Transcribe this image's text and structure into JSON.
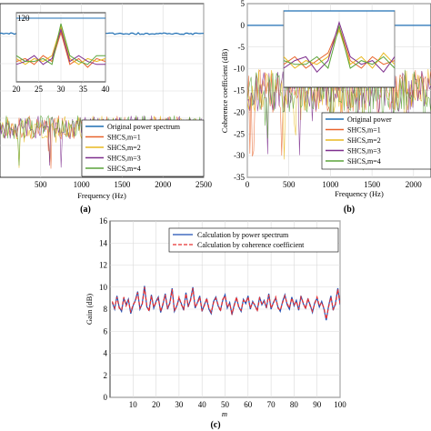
{
  "colors": {
    "original": "#1f6fb4",
    "m1": "#e8642c",
    "m2": "#e8b820",
    "m3": "#7e2f8e",
    "m4": "#5aa43a",
    "power_spectrum": "#1f4fb4",
    "coherence": "#e83030"
  },
  "panel_a": {
    "label": "(a)",
    "xlabel": "Frequency (Hz)",
    "legend": [
      "Original power spectrum",
      "SHCS,m=1",
      "SHCS,m=2",
      "SHCS,m=3",
      "SHCS,m=4"
    ]
  },
  "panel_b": {
    "label": "(b)",
    "xlabel": "Frequency (Hz)",
    "ylabel": "Coherence coefficient (dB)",
    "legend": [
      "Original power",
      "SHCS,m=1",
      "SHCS,m=2",
      "SHCS,m=3",
      "SHCS,m=4"
    ]
  },
  "panel_c": {
    "label": "(c)",
    "xlabel": "m",
    "ylabel": "Gain (dB)",
    "legend": [
      "Calculation by power spectrum",
      "Calculation by coherence coefficient"
    ]
  },
  "chart_data": [
    {
      "type": "line",
      "panel": "a",
      "title": "",
      "xlabel": "Frequency (Hz)",
      "ylabel": "",
      "xlim": [
        0,
        2500
      ],
      "xticks": [
        500,
        1000,
        1500,
        2000,
        2500
      ],
      "grid": true,
      "legend_position": "bottom-right",
      "series": [
        {
          "name": "Original power spectrum",
          "x": [
            0,
            2500
          ],
          "values": [
            112,
            112
          ]
        },
        {
          "name": "SHCS,m=1",
          "x": [
            0,
            2500
          ],
          "values": [
            83,
            83
          ]
        },
        {
          "name": "SHCS,m=2",
          "x": [
            0,
            2500
          ],
          "values": [
            83,
            83
          ]
        },
        {
          "name": "SHCS,m=3",
          "x": [
            0,
            2500
          ],
          "values": [
            83,
            83
          ]
        },
        {
          "name": "SHCS,m=4",
          "x": [
            0,
            2500
          ],
          "values": [
            83,
            83
          ]
        }
      ],
      "inset": {
        "xlim": [
          20,
          40
        ],
        "xticks": [
          20,
          25,
          30,
          35,
          40
        ],
        "yticks": [
          120
        ],
        "series": [
          {
            "name": "Original power spectrum",
            "x": [
              20,
              25,
              30,
              35,
              40
            ],
            "values": [
              120,
              120,
              121,
              120,
              120
            ]
          },
          {
            "name": "SHCS,m=1",
            "x": [
              20,
              22,
              24,
              26,
              28,
              30,
              32,
              34,
              36,
              38,
              40
            ],
            "values": [
              98,
              99,
              97,
              100,
              98,
              108,
              97,
              99,
              96,
              99,
              98
            ]
          },
          {
            "name": "SHCS,m=2",
            "x": [
              20,
              22,
              24,
              26,
              28,
              30,
              32,
              34,
              36,
              38,
              40
            ],
            "values": [
              99,
              97,
              99,
              98,
              100,
              110,
              99,
              97,
              99,
              98,
              99
            ]
          },
          {
            "name": "SHCS,m=3",
            "x": [
              20,
              22,
              24,
              26,
              28,
              30,
              32,
              34,
              36,
              38,
              40
            ],
            "values": [
              97,
              98,
              100,
              97,
              99,
              109,
              98,
              100,
              98,
              97,
              97
            ]
          },
          {
            "name": "SHCS,m=4",
            "x": [
              20,
              22,
              24,
              26,
              28,
              30,
              32,
              34,
              36,
              38,
              40
            ],
            "values": [
              100,
              98,
              98,
              99,
              97,
              111,
              100,
              98,
              97,
              100,
              100
            ]
          }
        ]
      }
    },
    {
      "type": "line",
      "panel": "b",
      "title": "",
      "xlabel": "Frequency (Hz)",
      "ylabel": "Coherence coefficient (dB)",
      "xlim": [
        0,
        2000
      ],
      "ylim": [
        -35,
        5
      ],
      "xticks": [
        0,
        500,
        1000,
        1500,
        2000
      ],
      "yticks": [
        5,
        0,
        -5,
        -10,
        -15,
        -20,
        -25,
        -30,
        -35
      ],
      "grid": true,
      "legend_position": "bottom-right",
      "series": [
        {
          "name": "Original power",
          "x": [
            0,
            2000
          ],
          "values": [
            0,
            0
          ]
        },
        {
          "name": "SHCS,m=1",
          "x": [
            0,
            2000
          ],
          "values": [
            -15,
            -15
          ]
        },
        {
          "name": "SHCS,m=2",
          "x": [
            0,
            2000
          ],
          "values": [
            -15,
            -15
          ]
        },
        {
          "name": "SHCS,m=3",
          "x": [
            0,
            2000
          ],
          "values": [
            -15,
            -15
          ]
        },
        {
          "name": "SHCS,m=4",
          "x": [
            0,
            2000
          ],
          "values": [
            -15,
            -15
          ]
        }
      ],
      "inset": {
        "xlim": [
          20,
          40
        ],
        "xticks": [
          20,
          25,
          30,
          35,
          40
        ],
        "ylim": [
          -20,
          0
        ],
        "series": [
          {
            "name": "Original power",
            "x": [
              20,
              25,
              30,
              35,
              40
            ],
            "values": [
              0,
              0,
              0,
              0,
              0
            ]
          },
          {
            "name": "SHCS,m=1",
            "x": [
              20,
              22,
              24,
              26,
              28,
              30,
              32,
              34,
              36,
              38,
              40
            ],
            "values": [
              -14,
              -12,
              -15,
              -13,
              -11,
              -4,
              -13,
              -15,
              -12,
              -14,
              -13
            ]
          },
          {
            "name": "SHCS,m=2",
            "x": [
              20,
              22,
              24,
              26,
              28,
              30,
              32,
              34,
              36,
              38,
              40
            ],
            "values": [
              -12,
              -15,
              -13,
              -14,
              -12,
              -5,
              -14,
              -12,
              -15,
              -11,
              -14
            ]
          },
          {
            "name": "SHCS,m=3",
            "x": [
              20,
              22,
              24,
              26,
              28,
              30,
              32,
              34,
              36,
              38,
              40
            ],
            "values": [
              -15,
              -13,
              -12,
              -16,
              -13,
              -3,
              -12,
              -14,
              -13,
              -16,
              -12
            ]
          },
          {
            "name": "SHCS,m=4",
            "x": [
              20,
              22,
              24,
              26,
              28,
              30,
              32,
              34,
              36,
              38,
              40
            ],
            "values": [
              -13,
              -14,
              -14,
              -12,
              -15,
              -4,
              -15,
              -13,
              -14,
              -12,
              -15
            ]
          }
        ]
      }
    },
    {
      "type": "line",
      "panel": "c",
      "title": "",
      "xlabel": "m",
      "ylabel": "Gain (dB)",
      "xlim": [
        0,
        100
      ],
      "ylim": [
        0,
        16
      ],
      "xticks": [
        10,
        20,
        30,
        40,
        50,
        60,
        70,
        80,
        90,
        100
      ],
      "yticks": [
        0,
        2,
        4,
        6,
        8,
        10,
        12,
        14,
        16
      ],
      "grid": true,
      "legend_position": "top-right",
      "x": [
        1,
        2,
        3,
        4,
        5,
        6,
        7,
        8,
        9,
        10,
        11,
        12,
        13,
        14,
        15,
        16,
        17,
        18,
        19,
        20,
        21,
        22,
        23,
        24,
        25,
        26,
        27,
        28,
        29,
        30,
        31,
        32,
        33,
        34,
        35,
        36,
        37,
        38,
        39,
        40,
        41,
        42,
        43,
        44,
        45,
        46,
        47,
        48,
        49,
        50,
        51,
        52,
        53,
        54,
        55,
        56,
        57,
        58,
        59,
        60,
        61,
        62,
        63,
        64,
        65,
        66,
        67,
        68,
        69,
        70,
        71,
        72,
        73,
        74,
        75,
        76,
        77,
        78,
        79,
        80,
        81,
        82,
        83,
        84,
        85,
        86,
        87,
        88,
        89,
        90,
        91,
        92,
        93,
        94,
        95,
        96,
        97,
        98,
        99,
        100
      ],
      "series": [
        {
          "name": "Calculation by power spectrum",
          "values": [
            8.6,
            8.0,
            9.2,
            8.2,
            7.8,
            9.0,
            8.4,
            8.9,
            7.6,
            8.3,
            8.8,
            9.6,
            8.0,
            8.5,
            10.1,
            8.2,
            7.9,
            9.3,
            8.1,
            8.7,
            9.1,
            7.7,
            8.4,
            9.4,
            8.0,
            8.6,
            9.9,
            7.8,
            8.3,
            9.0,
            8.5,
            7.9,
            9.5,
            8.2,
            8.9,
            10.0,
            8.1,
            8.6,
            9.2,
            7.8,
            8.4,
            8.9,
            8.0,
            7.6,
            8.7,
            9.1,
            8.3,
            7.9,
            8.8,
            9.3,
            8.1,
            8.6,
            7.5,
            8.4,
            9.0,
            8.2,
            7.8,
            8.9,
            8.5,
            9.2,
            8.0,
            8.7,
            8.3,
            7.9,
            9.1,
            8.4,
            8.8,
            8.1,
            9.4,
            8.0,
            8.6,
            9.0,
            8.2,
            7.8,
            8.7,
            9.3,
            8.4,
            8.0,
            9.1,
            8.3,
            8.8,
            7.9,
            9.2,
            8.5,
            8.1,
            8.9,
            8.4,
            7.7,
            8.6,
            9.0,
            8.2,
            8.7,
            8.0,
            7.0,
            8.3,
            9.2,
            7.9,
            8.5,
            9.9,
            8.4
          ]
        },
        {
          "name": "Calculation by coherence coefficient",
          "values": [
            8.7,
            8.1,
            9.1,
            8.1,
            7.9,
            9.1,
            8.3,
            8.8,
            7.7,
            8.4,
            8.7,
            9.5,
            8.1,
            8.4,
            10.0,
            8.3,
            7.8,
            9.2,
            8.2,
            8.6,
            9.0,
            7.8,
            8.5,
            9.3,
            8.1,
            8.5,
            9.8,
            7.9,
            8.2,
            9.1,
            8.4,
            8.0,
            9.4,
            8.3,
            8.8,
            9.9,
            8.2,
            8.5,
            9.1,
            7.9,
            8.3,
            9.0,
            8.1,
            7.7,
            8.6,
            9.0,
            8.4,
            7.8,
            8.9,
            9.2,
            8.2,
            8.5,
            7.6,
            8.3,
            9.1,
            8.1,
            7.9,
            8.8,
            8.6,
            9.1,
            8.1,
            8.6,
            8.4,
            7.8,
            9.0,
            8.5,
            8.7,
            8.2,
            9.3,
            8.1,
            8.5,
            9.1,
            8.1,
            7.9,
            8.6,
            9.2,
            8.5,
            8.1,
            9.0,
            8.4,
            8.7,
            8.0,
            9.1,
            8.6,
            8.0,
            9.0,
            8.3,
            7.8,
            8.5,
            9.1,
            8.3,
            8.6,
            8.1,
            7.1,
            8.2,
            9.1,
            8.0,
            8.4,
            9.8,
            8.5
          ]
        }
      ]
    }
  ]
}
